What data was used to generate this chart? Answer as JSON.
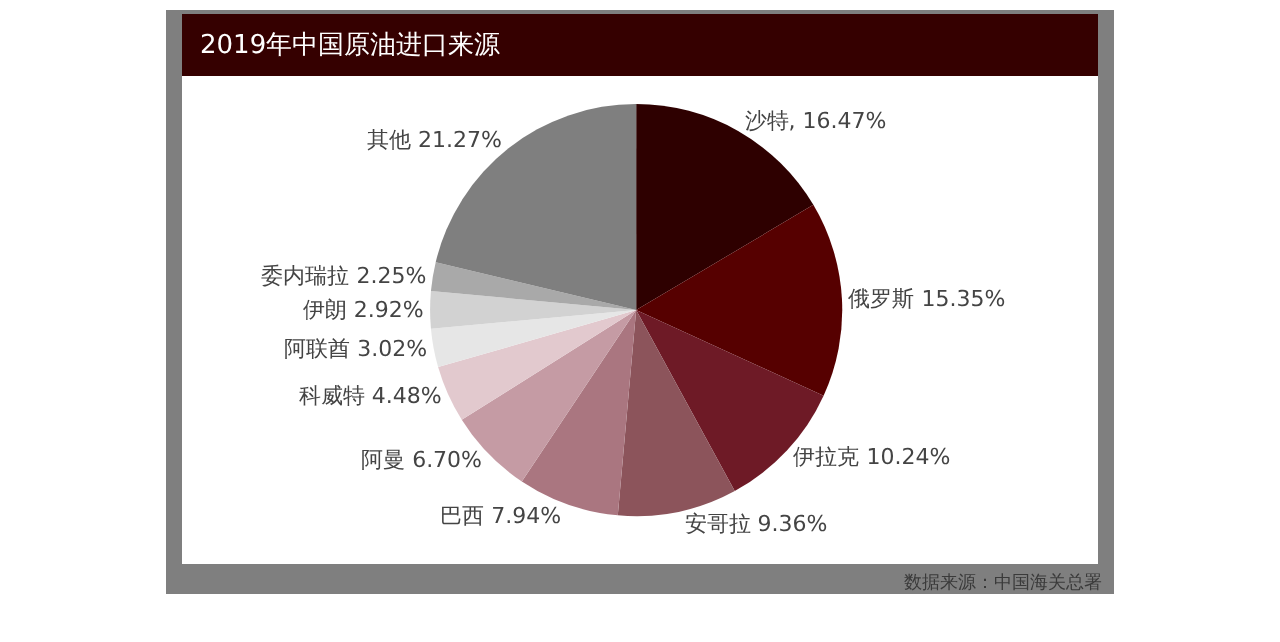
{
  "chart_data": {
    "type": "pie",
    "title": "2019年中国原油进口来源",
    "categories": [
      "沙特",
      "俄罗斯",
      "伊拉克",
      "安哥拉",
      "巴西",
      "阿曼",
      "科威特",
      "阿联酋",
      "伊朗",
      "委内瑞拉",
      "其他"
    ],
    "values": [
      16.47,
      15.35,
      10.24,
      9.36,
      7.94,
      6.7,
      4.48,
      3.02,
      2.92,
      2.25,
      21.27
    ],
    "value_labels": [
      "16.47%",
      "15.35%",
      "10.24%",
      "9.36%",
      "7.94%",
      "6.70%",
      "4.48%",
      "3.02%",
      "2.92%",
      "2.25%",
      "21.27%"
    ],
    "colors": [
      "#2e0000",
      "#560000",
      "#6e1a26",
      "#8c545b",
      "#aa7680",
      "#c59ba4",
      "#e2c9ce",
      "#e6e6e6",
      "#d2d2d2",
      "#a9a9a9",
      "#7f7f7f"
    ],
    "annotations": [
      "数据来源：中国海关总署"
    ],
    "legend": false
  }
}
